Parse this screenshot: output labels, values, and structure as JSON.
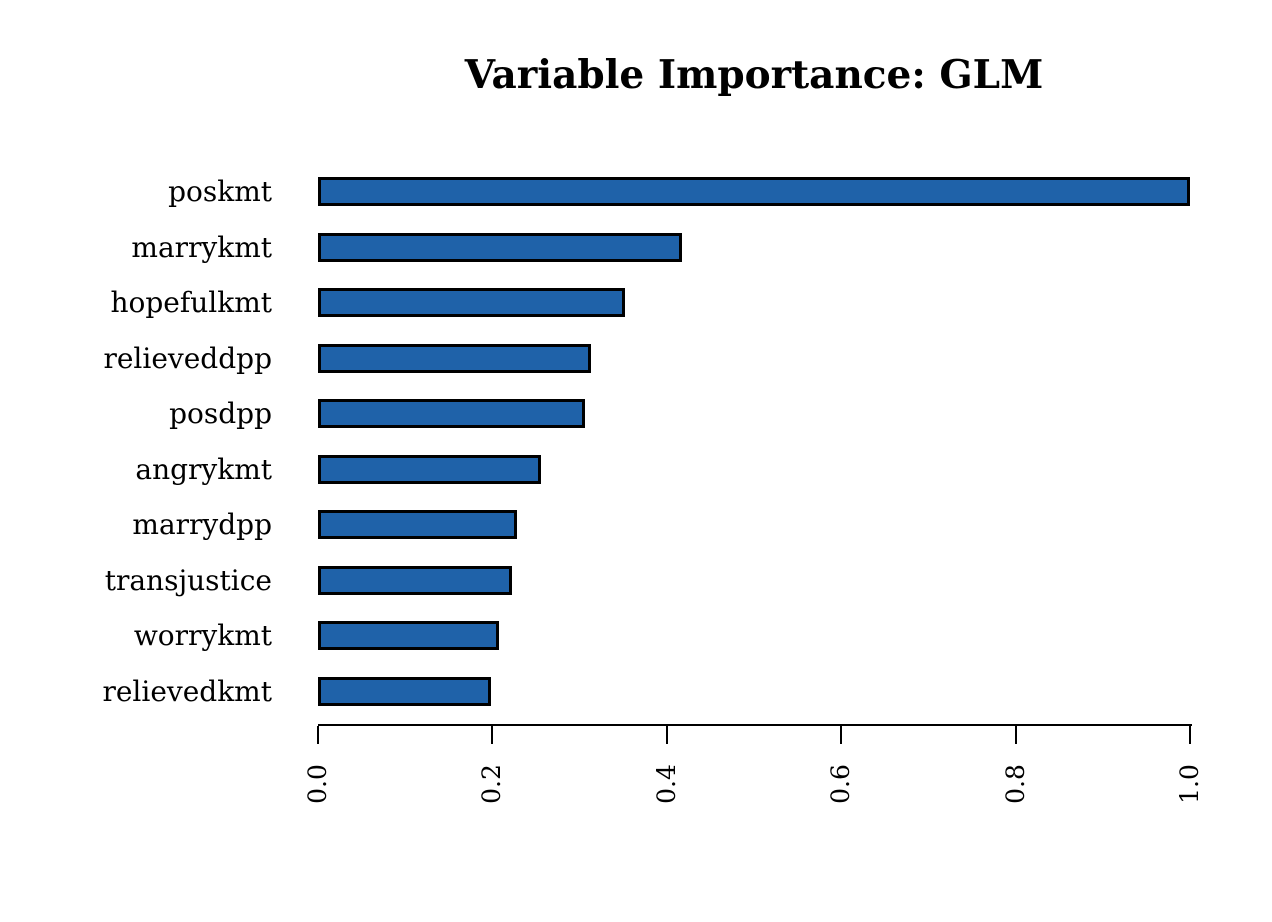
{
  "chart_data": {
    "type": "bar",
    "orientation": "horizontal",
    "title": "Variable Importance: GLM",
    "categories": [
      "poskmt",
      "marrykmt",
      "hopefulkmt",
      "relieveddpp",
      "posdpp",
      "angrykmt",
      "marrydpp",
      "transjustice",
      "worrykmt",
      "relievedkmt"
    ],
    "values": [
      1.0,
      0.417,
      0.352,
      0.313,
      0.306,
      0.256,
      0.228,
      0.222,
      0.208,
      0.198
    ],
    "xlabel": "",
    "ylabel": "",
    "xlim": [
      0.0,
      1.0
    ],
    "xticks": [
      0.0,
      0.2,
      0.4,
      0.6,
      0.8,
      1.0
    ],
    "xtick_labels": [
      "0.0",
      "0.2",
      "0.4",
      "0.6",
      "0.8",
      "1.0"
    ],
    "xtick_label_rotation_deg": 90,
    "grid": false,
    "legend": "none",
    "bar_color": "#1f62a9",
    "bar_border_color": "#000000",
    "background_color": "#ffffff",
    "text_color": "#000000"
  }
}
